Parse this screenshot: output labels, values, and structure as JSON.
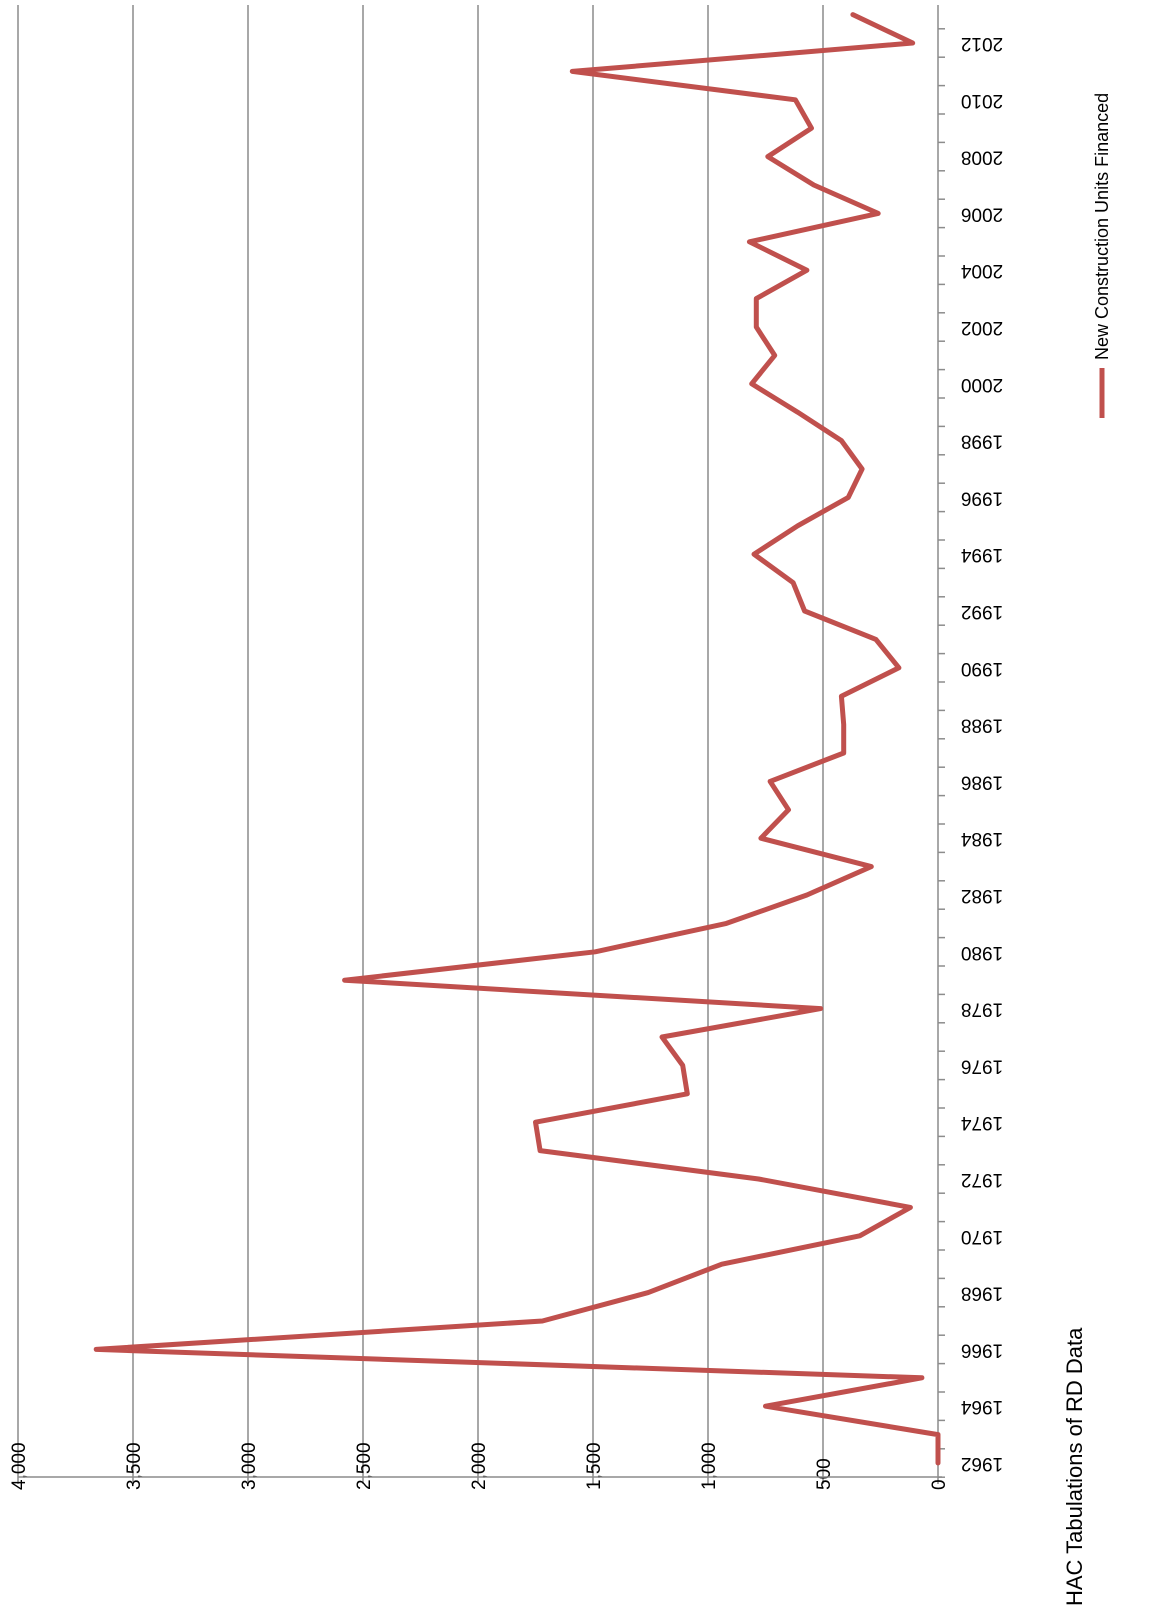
{
  "caption": "HAC Tabulations of RD Data",
  "legend": {
    "label": "New Construction Units Financed",
    "color": "#c0504d"
  },
  "chart_data": {
    "type": "line",
    "title": "",
    "xlabel": "",
    "ylabel": "",
    "ylim": [
      0,
      4000
    ],
    "y_ticks": [
      0,
      500,
      1000,
      1500,
      2000,
      2500,
      3000,
      3500,
      4000
    ],
    "y_tick_labels": [
      "0",
      "500",
      "1,000",
      "1,500",
      "2,000",
      "2,500",
      "3,000",
      "3,500",
      "4,000"
    ],
    "x_tick_labels": [
      "1962",
      "1964",
      "1966",
      "1968",
      "1970",
      "1972",
      "1974",
      "1976",
      "1978",
      "1980",
      "1982",
      "1984",
      "1986",
      "1988",
      "1990",
      "1992",
      "1994",
      "1996",
      "1998",
      "2000",
      "2002",
      "2004",
      "2006",
      "2008",
      "2010",
      "2012"
    ],
    "grid": true,
    "legend_position": "right",
    "rotated": true,
    "series": [
      {
        "name": "New Construction Units Financed",
        "color": "#c0504d",
        "x": [
          1962,
          1963,
          1964,
          1965,
          1966,
          1967,
          1968,
          1969,
          1970,
          1971,
          1972,
          1973,
          1974,
          1975,
          1976,
          1977,
          1978,
          1979,
          1980,
          1981,
          1982,
          1983,
          1984,
          1985,
          1986,
          1987,
          1988,
          1989,
          1990,
          1991,
          1992,
          1993,
          1994,
          1995,
          1996,
          1997,
          1998,
          1999,
          2000,
          2001,
          2002,
          2003,
          2004,
          2005,
          2006,
          2007,
          2008,
          2009,
          2010,
          2011,
          2012,
          2013
        ],
        "values": [
          0,
          0,
          750,
          70,
          3660,
          1720,
          1260,
          940,
          340,
          120,
          780,
          1730,
          1750,
          1090,
          1110,
          1200,
          510,
          2580,
          1490,
          920,
          570,
          290,
          770,
          650,
          730,
          410,
          410,
          420,
          170,
          270,
          580,
          630,
          800,
          610,
          390,
          330,
          420,
          610,
          810,
          710,
          790,
          790,
          570,
          820,
          260,
          540,
          740,
          550,
          620,
          1590,
          110,
          370
        ]
      }
    ]
  }
}
